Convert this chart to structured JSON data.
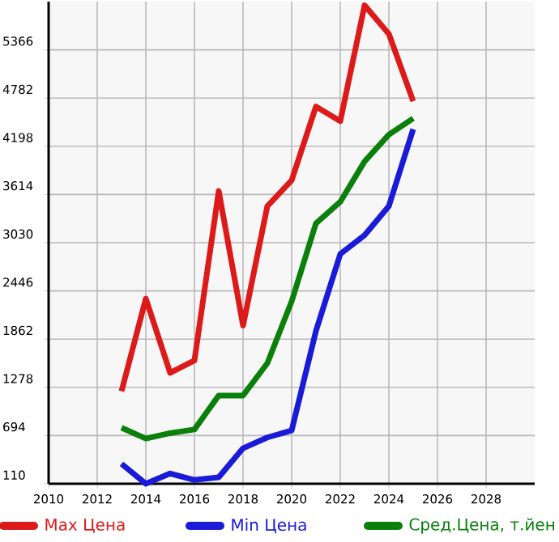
{
  "chart_data": {
    "type": "line",
    "x": [
      2013,
      2014,
      2015,
      2016,
      2017,
      2018,
      2019,
      2020,
      2021,
      2022,
      2023,
      2024,
      2025
    ],
    "series": [
      {
        "name": "Max Цена",
        "color": "#dd1a1a",
        "values": [
          1231,
          2352,
          1453,
          1603,
          3656,
          2026,
          3473,
          3786,
          4679,
          4503,
          5905,
          5559,
          4744
        ]
      },
      {
        "name": "Min Цена",
        "color": "#1a1ad9",
        "values": [
          351,
          110,
          234,
          156,
          188,
          540,
          671,
          755,
          1961,
          2893,
          3121,
          3473,
          4405
        ]
      },
      {
        "name": "Сред.Цена, т.йен",
        "color": "#0a800a",
        "values": [
          788,
          658,
          723,
          768,
          1179,
          1179,
          1570,
          2320,
          3265,
          3525,
          4014,
          4340,
          4536
        ]
      }
    ],
    "xlim": [
      2010,
      2030
    ],
    "xticks": [
      2010,
      2012,
      2014,
      2016,
      2018,
      2020,
      2022,
      2024,
      2026,
      2028
    ],
    "ylim": [
      110,
      5950
    ],
    "yticks": [
      110,
      694,
      1278,
      1862,
      2446,
      3030,
      3614,
      4198,
      4782,
      5366
    ],
    "grid": true,
    "legend": "bottom",
    "marker": "none",
    "line_style": "solid"
  }
}
